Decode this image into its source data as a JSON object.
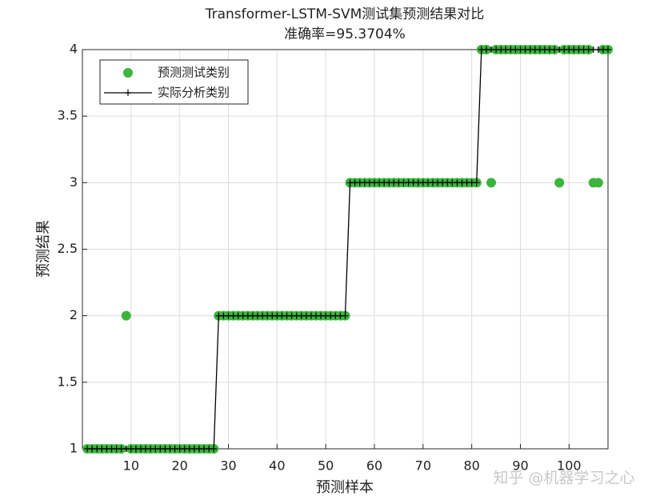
{
  "chart_data": {
    "type": "line",
    "title": "Transformer-LSTM-SVM测试集预测结果对比",
    "subtitle": "准确率=95.3704%",
    "x_label": "预测样本",
    "y_label": "预测结果",
    "watermark": "知乎 @机器学习之心",
    "x": [
      1,
      2,
      3,
      4,
      5,
      6,
      7,
      8,
      9,
      10,
      11,
      12,
      13,
      14,
      15,
      16,
      17,
      18,
      19,
      20,
      21,
      22,
      23,
      24,
      25,
      26,
      27,
      28,
      29,
      30,
      31,
      32,
      33,
      34,
      35,
      36,
      37,
      38,
      39,
      40,
      41,
      42,
      43,
      44,
      45,
      46,
      47,
      48,
      49,
      50,
      51,
      52,
      53,
      54,
      55,
      56,
      57,
      58,
      59,
      60,
      61,
      62,
      63,
      64,
      65,
      66,
      67,
      68,
      69,
      70,
      71,
      72,
      73,
      74,
      75,
      76,
      77,
      78,
      79,
      80,
      81,
      82,
      83,
      84,
      85,
      86,
      87,
      88,
      89,
      90,
      91,
      92,
      93,
      94,
      95,
      96,
      97,
      98,
      99,
      100,
      101,
      102,
      103,
      104,
      105,
      106,
      107,
      108
    ],
    "series": [
      {
        "name": "预测测试类别",
        "color": "#3cb43c",
        "marker": "circle",
        "values": [
          1,
          1,
          1,
          1,
          1,
          1,
          1,
          1,
          2,
          1,
          1,
          1,
          1,
          1,
          1,
          1,
          1,
          1,
          1,
          1,
          1,
          1,
          1,
          1,
          1,
          1,
          1,
          2,
          2,
          2,
          2,
          2,
          2,
          2,
          2,
          2,
          2,
          2,
          2,
          2,
          2,
          2,
          2,
          2,
          2,
          2,
          2,
          2,
          2,
          2,
          2,
          2,
          2,
          2,
          3,
          3,
          3,
          3,
          3,
          3,
          3,
          3,
          3,
          3,
          3,
          3,
          3,
          3,
          3,
          3,
          3,
          3,
          3,
          3,
          3,
          3,
          3,
          3,
          3,
          3,
          3,
          4,
          4,
          3,
          4,
          4,
          4,
          4,
          4,
          4,
          4,
          4,
          4,
          4,
          4,
          4,
          4,
          3,
          4,
          4,
          4,
          4,
          4,
          4,
          3,
          3,
          4,
          4
        ]
      },
      {
        "name": "实际分析类别",
        "color": "#000000",
        "marker": "plus-line",
        "values": [
          1,
          1,
          1,
          1,
          1,
          1,
          1,
          1,
          1,
          1,
          1,
          1,
          1,
          1,
          1,
          1,
          1,
          1,
          1,
          1,
          1,
          1,
          1,
          1,
          1,
          1,
          1,
          2,
          2,
          2,
          2,
          2,
          2,
          2,
          2,
          2,
          2,
          2,
          2,
          2,
          2,
          2,
          2,
          2,
          2,
          2,
          2,
          2,
          2,
          2,
          2,
          2,
          2,
          2,
          3,
          3,
          3,
          3,
          3,
          3,
          3,
          3,
          3,
          3,
          3,
          3,
          3,
          3,
          3,
          3,
          3,
          3,
          3,
          3,
          3,
          3,
          3,
          3,
          3,
          3,
          3,
          4,
          4,
          4,
          4,
          4,
          4,
          4,
          4,
          4,
          4,
          4,
          4,
          4,
          4,
          4,
          4,
          4,
          4,
          4,
          4,
          4,
          4,
          4,
          4,
          4,
          4,
          4
        ]
      }
    ],
    "xlim": [
      0,
      108
    ],
    "xticks": [
      10,
      20,
      30,
      40,
      50,
      60,
      70,
      80,
      90,
      100
    ],
    "ylim": [
      1,
      4
    ],
    "yticks": [
      1,
      1.5,
      2,
      2.5,
      3,
      3.5,
      4
    ],
    "grid": true,
    "legend_position": "northwest"
  }
}
